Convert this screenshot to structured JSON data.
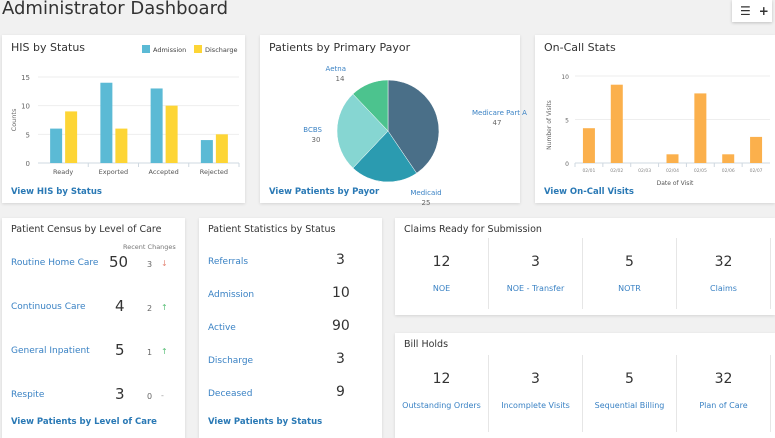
{
  "header": {
    "title": "Administrator Dashboard",
    "list_icon": "list-icon",
    "add_icon": "plus-icon"
  },
  "his": {
    "title": "HIS by Status",
    "link": "View HIS by Status",
    "chart_data": {
      "type": "bar",
      "categories": [
        "Ready",
        "Exported",
        "Accepted",
        "Rejected"
      ],
      "series": [
        {
          "name": "Admission",
          "values": [
            6,
            14,
            13,
            4
          ],
          "color": "#5bbad5"
        },
        {
          "name": "Discharge",
          "values": [
            9,
            6,
            10,
            5
          ],
          "color": "#fdd535"
        }
      ],
      "ylabel": "Counts",
      "ylim": [
        0,
        15
      ],
      "yticks": [
        0,
        5,
        10,
        15
      ],
      "legend": "top-right",
      "grid": true
    }
  },
  "payor": {
    "title": "Patients by Primary Payor",
    "link": "View Patients by Payor",
    "chart_data": {
      "type": "pie",
      "slices": [
        {
          "label": "Medicare Part A",
          "value": 47,
          "color": "#4a6f88"
        },
        {
          "label": "Medicaid",
          "value": 25,
          "color": "#2b9bb0"
        },
        {
          "label": "BCBS",
          "value": 30,
          "color": "#86d6d2"
        },
        {
          "label": "Aetna",
          "value": 14,
          "color": "#4cc38e"
        }
      ]
    }
  },
  "oncall": {
    "title": "On-Call Stats",
    "link": "View On-Call Visits",
    "chart_data": {
      "type": "bar",
      "categories": [
        "02/01",
        "02/02",
        "02/03",
        "02/04",
        "02/05",
        "02/06",
        "02/07"
      ],
      "values": [
        4,
        9,
        0,
        1,
        8,
        1,
        3
      ],
      "color": "#fbb04c",
      "xlabel": "Date of Visit",
      "ylabel": "Number of Visits",
      "ylim": [
        0,
        10
      ],
      "yticks": [
        0,
        5,
        10
      ],
      "grid": true
    }
  },
  "census": {
    "title": "Patient Census by Level of Care",
    "changes_header": "Recent Changes",
    "link": "View Patients by Level of Care",
    "rows": [
      {
        "label": "Routine Home Care",
        "value": "50",
        "change": "3",
        "dir": "↓",
        "color": "#e58a7a"
      },
      {
        "label": "Continuous Care",
        "value": "4",
        "change": "2",
        "dir": "↑",
        "color": "#5cc07a"
      },
      {
        "label": "General Inpatient",
        "value": "5",
        "change": "1",
        "dir": "↑",
        "color": "#5cc07a"
      },
      {
        "label": "Respite",
        "value": "3",
        "change": "0",
        "dir": "-",
        "color": "#999999"
      }
    ]
  },
  "stats": {
    "title": "Patient Statistics by Status",
    "link": "View Patients by Status",
    "rows": [
      {
        "label": "Referrals",
        "value": "3"
      },
      {
        "label": "Admission",
        "value": "10"
      },
      {
        "label": "Active",
        "value": "90"
      },
      {
        "label": "Discharge",
        "value": "3"
      },
      {
        "label": "Deceased",
        "value": "9"
      }
    ]
  },
  "claims": {
    "title": "Claims Ready for Submission",
    "tiles": [
      {
        "value": "12",
        "label": "NOE"
      },
      {
        "value": "3",
        "label": "NOE - Transfer"
      },
      {
        "value": "5",
        "label": "NOTR"
      },
      {
        "value": "32",
        "label": "Claims"
      }
    ]
  },
  "holds": {
    "title": "Bill Holds",
    "tiles": [
      {
        "value": "12",
        "label": "Outstanding Orders"
      },
      {
        "value": "3",
        "label": "Incomplete Visits"
      },
      {
        "value": "5",
        "label": "Sequential Billing"
      },
      {
        "value": "32",
        "label": "Plan of Care"
      }
    ]
  }
}
